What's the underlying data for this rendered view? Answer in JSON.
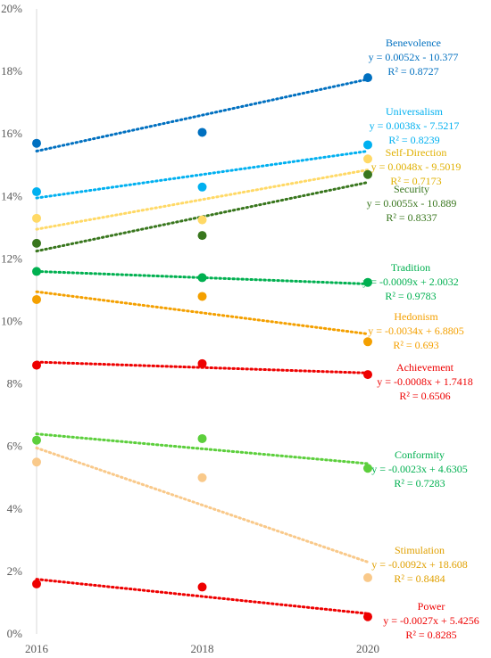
{
  "chart_data": {
    "type": "scatter",
    "x": [
      2016,
      2018,
      2020
    ],
    "xlim": [
      2016,
      2020
    ],
    "ylim": [
      0,
      20
    ],
    "yticks": [
      "0%",
      "2%",
      "4%",
      "6%",
      "8%",
      "10%",
      "12%",
      "14%",
      "16%",
      "18%",
      "20%"
    ],
    "xticks": [
      "2016",
      "2018",
      "2020"
    ],
    "grid": false,
    "series": [
      {
        "name": "Benevolence",
        "color": "#0070c0",
        "values": [
          15.7,
          16.05,
          17.8
        ],
        "trend": [
          15.45,
          17.75
        ],
        "equation": "y = 0.0052x - 10.377",
        "r2": "R² = 0.8727"
      },
      {
        "name": "Universalism",
        "color": "#00b0f0",
        "values": [
          14.15,
          14.3,
          15.65
        ],
        "trend": [
          13.95,
          15.45
        ],
        "equation": "y = 0.0038x - 7.5217",
        "r2": "R² = 0.8239"
      },
      {
        "name": "Self-Direction",
        "color": "#ffd966",
        "values": [
          13.3,
          13.25,
          15.2
        ],
        "trend": [
          12.95,
          14.85
        ],
        "equation": "y = 0.0048x - 9.5019",
        "r2": "R² = 0.7173"
      },
      {
        "name": "Security",
        "color": "#38761d",
        "values": [
          12.5,
          12.75,
          14.7
        ],
        "trend": [
          12.25,
          14.45
        ],
        "equation": "y = 0.0055x - 10.889",
        "r2": "R² = 0.8337"
      },
      {
        "name": "Tradition",
        "color": "#00b050",
        "values": [
          11.6,
          11.4,
          11.25
        ],
        "trend": [
          11.6,
          11.2
        ],
        "equation": "y = -0.0009x + 2.0032",
        "r2": "R² = 0.9783"
      },
      {
        "name": "Hedonism",
        "color": "#f4a000",
        "values": [
          10.7,
          10.8,
          9.35
        ],
        "trend": [
          10.95,
          9.6
        ],
        "equation": "y = -0.0034x + 6.8805",
        "r2": "R² = 0.693"
      },
      {
        "name": "Achievement",
        "color": "#ee0000",
        "values": [
          8.6,
          8.65,
          8.3
        ],
        "trend": [
          8.7,
          8.35
        ],
        "equation": "y = -0.0008x + 1.7418",
        "r2": "R² = 0.6506"
      },
      {
        "name": "Conformity",
        "color": "#5ccf3c",
        "values": [
          6.2,
          6.25,
          5.3
        ],
        "trend": [
          6.4,
          5.45
        ],
        "equation": "y = -0.0023x + 4.6305",
        "r2": "R² = 0.7283"
      },
      {
        "name": "Stimulation",
        "color": "#f9c98a",
        "values": [
          5.5,
          5.0,
          1.8
        ],
        "trend": [
          5.95,
          2.3
        ],
        "equation": "y = -0.0092x + 18.608",
        "r2": "R² = 0.8484"
      },
      {
        "name": "Power",
        "color": "#ee0000",
        "values": [
          1.6,
          1.5,
          0.55
        ],
        "trend": [
          1.75,
          0.65
        ],
        "equation": "y = -0.0027x + 5.4256",
        "r2": "R² = 0.8285"
      }
    ]
  },
  "label_colors": {
    "Benevolence": "#0070c0",
    "Universalism": "#00b0f0",
    "Self-Direction": "#e0b000",
    "Security": "#38761d",
    "Tradition": "#00b050",
    "Hedonism": "#f4a000",
    "Achievement": "#ee0000",
    "Conformity": "#00b050",
    "Stimulation": "#e0a000",
    "Power": "#ee0000"
  }
}
